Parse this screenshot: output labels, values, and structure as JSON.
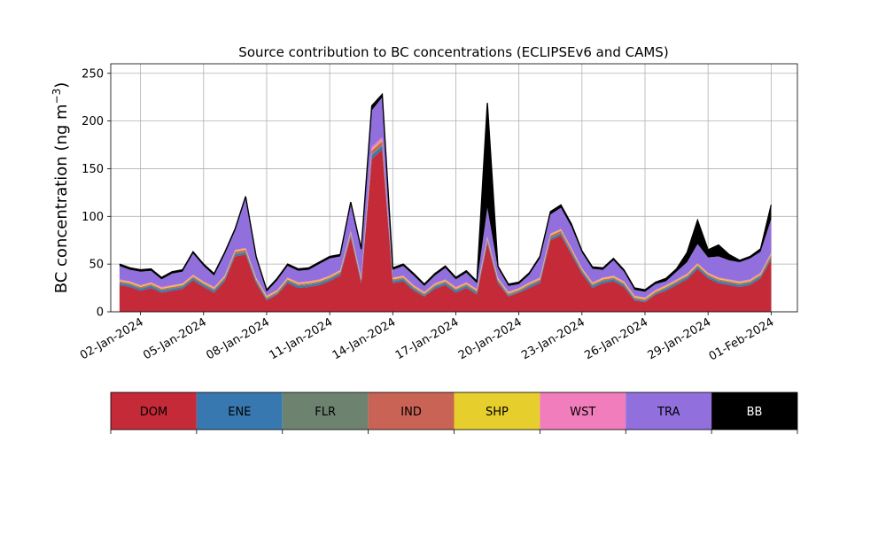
{
  "chart_data": {
    "type": "area",
    "stacked": true,
    "title": "Source contribution to BC concentrations (ECLIPSEv6 and CAMS)",
    "ylabel": "BC concentration (ng m",
    "ylabel_sup": "−3",
    "ylabel_close": ")",
    "xlabel": "",
    "ylim": [
      0,
      260
    ],
    "yticks": [
      0,
      50,
      100,
      150,
      200,
      250
    ],
    "xlim": [
      "2023-12-31T14:00",
      "2024-02-02T06:00"
    ],
    "xticks": [
      "2024-01-02",
      "2024-01-05",
      "2024-01-08",
      "2024-01-11",
      "2024-01-14",
      "2024-01-17",
      "2024-01-20",
      "2024-01-23",
      "2024-01-26",
      "2024-01-29",
      "2024-02-01"
    ],
    "xtick_labels": [
      "02-Jan-2024",
      "05-Jan-2024",
      "08-Jan-2024",
      "11-Jan-2024",
      "14-Jan-2024",
      "17-Jan-2024",
      "20-Jan-2024",
      "23-Jan-2024",
      "26-Jan-2024",
      "29-Jan-2024",
      "01-Feb-2024"
    ],
    "grid": true,
    "legend_position": "below",
    "legend": [
      {
        "name": "DOM",
        "color": "#c52a38"
      },
      {
        "name": "ENE",
        "color": "#3878b0"
      },
      {
        "name": "FLR",
        "color": "#6e8270"
      },
      {
        "name": "IND",
        "color": "#c96355"
      },
      {
        "name": "SHP",
        "color": "#e6cf2d"
      },
      {
        "name": "WST",
        "color": "#f17dbc"
      },
      {
        "name": "TRA",
        "color": "#916fdd"
      },
      {
        "name": "BB",
        "color": "#000000"
      }
    ],
    "x": [
      "2024-01-01T00:00",
      "2024-01-01T12:00",
      "2024-01-02T00:00",
      "2024-01-02T12:00",
      "2024-01-03T00:00",
      "2024-01-03T12:00",
      "2024-01-04T00:00",
      "2024-01-04T12:00",
      "2024-01-05T00:00",
      "2024-01-05T12:00",
      "2024-01-06T00:00",
      "2024-01-06T12:00",
      "2024-01-07T00:00",
      "2024-01-07T12:00",
      "2024-01-08T00:00",
      "2024-01-08T12:00",
      "2024-01-09T00:00",
      "2024-01-09T12:00",
      "2024-01-10T00:00",
      "2024-01-10T12:00",
      "2024-01-11T00:00",
      "2024-01-11T12:00",
      "2024-01-12T00:00",
      "2024-01-12T12:00",
      "2024-01-13T00:00",
      "2024-01-13T12:00",
      "2024-01-14T00:00",
      "2024-01-14T12:00",
      "2024-01-15T00:00",
      "2024-01-15T12:00",
      "2024-01-16T00:00",
      "2024-01-16T12:00",
      "2024-01-17T00:00",
      "2024-01-17T12:00",
      "2024-01-18T00:00",
      "2024-01-18T12:00",
      "2024-01-19T00:00",
      "2024-01-19T12:00",
      "2024-01-20T00:00",
      "2024-01-20T12:00",
      "2024-01-21T00:00",
      "2024-01-21T12:00",
      "2024-01-22T00:00",
      "2024-01-22T12:00",
      "2024-01-23T00:00",
      "2024-01-23T12:00",
      "2024-01-24T00:00",
      "2024-01-24T12:00",
      "2024-01-25T00:00",
      "2024-01-25T12:00",
      "2024-01-26T00:00",
      "2024-01-26T12:00",
      "2024-01-27T00:00",
      "2024-01-27T12:00",
      "2024-01-28T00:00",
      "2024-01-28T12:00",
      "2024-01-29T00:00",
      "2024-01-29T12:00",
      "2024-01-30T00:00",
      "2024-01-30T12:00",
      "2024-01-31T00:00",
      "2024-01-31T12:00",
      "2024-02-01T00:00"
    ],
    "series": [
      {
        "name": "DOM",
        "color": "#c52a38",
        "values": [
          28,
          26,
          22,
          25,
          20,
          22,
          24,
          33,
          26,
          20,
          32,
          58,
          60,
          30,
          12,
          18,
          30,
          25,
          26,
          28,
          32,
          38,
          78,
          30,
          160,
          170,
          30,
          32,
          22,
          16,
          24,
          28,
          20,
          25,
          18,
          72,
          30,
          16,
          20,
          25,
          30,
          75,
          80,
          60,
          40,
          25,
          30,
          32,
          26,
          12,
          10,
          18,
          22,
          28,
          34,
          45,
          35,
          30,
          28,
          26,
          28,
          35,
          55
        ]
      },
      {
        "name": "ENE",
        "color": "#3878b0",
        "values": [
          2,
          2,
          2,
          2,
          2,
          2,
          2,
          2,
          2,
          2,
          2,
          2,
          2,
          2,
          1,
          1,
          2,
          2,
          2,
          2,
          2,
          2,
          2,
          2,
          4,
          4,
          2,
          2,
          2,
          1,
          2,
          2,
          2,
          2,
          2,
          2,
          2,
          1,
          1,
          2,
          2,
          2,
          2,
          2,
          2,
          2,
          2,
          2,
          2,
          1,
          1,
          1,
          2,
          2,
          2,
          2,
          2,
          2,
          2,
          2,
          2,
          2,
          2
        ]
      },
      {
        "name": "FLR",
        "color": "#6e8270",
        "values": [
          1,
          1,
          1,
          1,
          1,
          1,
          1,
          1,
          1,
          1,
          1,
          1,
          1,
          1,
          1,
          1,
          1,
          1,
          1,
          1,
          1,
          1,
          1,
          1,
          1,
          1,
          1,
          1,
          1,
          1,
          1,
          1,
          1,
          1,
          1,
          1,
          1,
          1,
          1,
          1,
          1,
          1,
          1,
          1,
          1,
          1,
          1,
          1,
          1,
          1,
          1,
          1,
          1,
          1,
          1,
          1,
          1,
          1,
          1,
          1,
          1,
          1,
          1
        ]
      },
      {
        "name": "IND",
        "color": "#c96355",
        "values": [
          1,
          1,
          1,
          1,
          1,
          1,
          1,
          1,
          1,
          1,
          1,
          2,
          2,
          1,
          1,
          1,
          1,
          1,
          1,
          1,
          1,
          1,
          2,
          1,
          4,
          4,
          1,
          1,
          1,
          1,
          1,
          1,
          1,
          1,
          1,
          2,
          1,
          1,
          1,
          1,
          1,
          2,
          2,
          2,
          1,
          1,
          1,
          1,
          1,
          1,
          1,
          1,
          1,
          1,
          1,
          1,
          1,
          1,
          1,
          1,
          1,
          1,
          2
        ]
      },
      {
        "name": "SHP",
        "color": "#e6cf2d",
        "values": [
          1,
          1,
          1,
          1,
          1,
          1,
          1,
          1,
          1,
          1,
          1,
          1,
          1,
          1,
          1,
          1,
          1,
          1,
          1,
          1,
          1,
          1,
          1,
          1,
          1,
          1,
          1,
          1,
          1,
          1,
          1,
          1,
          1,
          1,
          1,
          1,
          1,
          1,
          1,
          1,
          1,
          1,
          1,
          1,
          1,
          1,
          1,
          1,
          1,
          1,
          1,
          1,
          1,
          1,
          1,
          1,
          1,
          1,
          1,
          1,
          1,
          1,
          1
        ]
      },
      {
        "name": "WST",
        "color": "#f17dbc",
        "values": [
          1,
          1,
          1,
          1,
          1,
          1,
          1,
          1,
          1,
          1,
          1,
          1,
          1,
          1,
          1,
          1,
          1,
          1,
          1,
          1,
          1,
          1,
          1,
          1,
          3,
          3,
          1,
          1,
          1,
          1,
          1,
          1,
          1,
          1,
          1,
          1,
          1,
          1,
          1,
          1,
          1,
          1,
          1,
          1,
          1,
          1,
          1,
          1,
          1,
          1,
          1,
          1,
          1,
          1,
          1,
          1,
          1,
          1,
          1,
          1,
          1,
          1,
          1
        ]
      },
      {
        "name": "TRA",
        "color": "#916fdd",
        "values": [
          14,
          12,
          14,
          12,
          8,
          12,
          12,
          22,
          16,
          12,
          22,
          20,
          52,
          20,
          4,
          10,
          12,
          12,
          12,
          16,
          18,
          14,
          28,
          28,
          38,
          42,
          8,
          10,
          10,
          6,
          8,
          12,
          8,
          10,
          6,
          30,
          10,
          6,
          4,
          8,
          20,
          20,
          22,
          22,
          16,
          14,
          8,
          16,
          10,
          6,
          6,
          6,
          4,
          8,
          12,
          20,
          16,
          22,
          20,
          20,
          22,
          22,
          35
        ]
      },
      {
        "name": "BB",
        "color": "#000000",
        "values": [
          2,
          2,
          2,
          2,
          2,
          2,
          2,
          2,
          2,
          2,
          2,
          2,
          2,
          2,
          2,
          2,
          2,
          2,
          2,
          2,
          2,
          2,
          2,
          2,
          5,
          3,
          2,
          2,
          2,
          2,
          2,
          2,
          2,
          2,
          2,
          110,
          2,
          2,
          2,
          2,
          2,
          3,
          3,
          3,
          2,
          2,
          2,
          2,
          2,
          2,
          2,
          2,
          3,
          3,
          10,
          25,
          8,
          12,
          6,
          2,
          2,
          3,
          15
        ]
      }
    ]
  }
}
